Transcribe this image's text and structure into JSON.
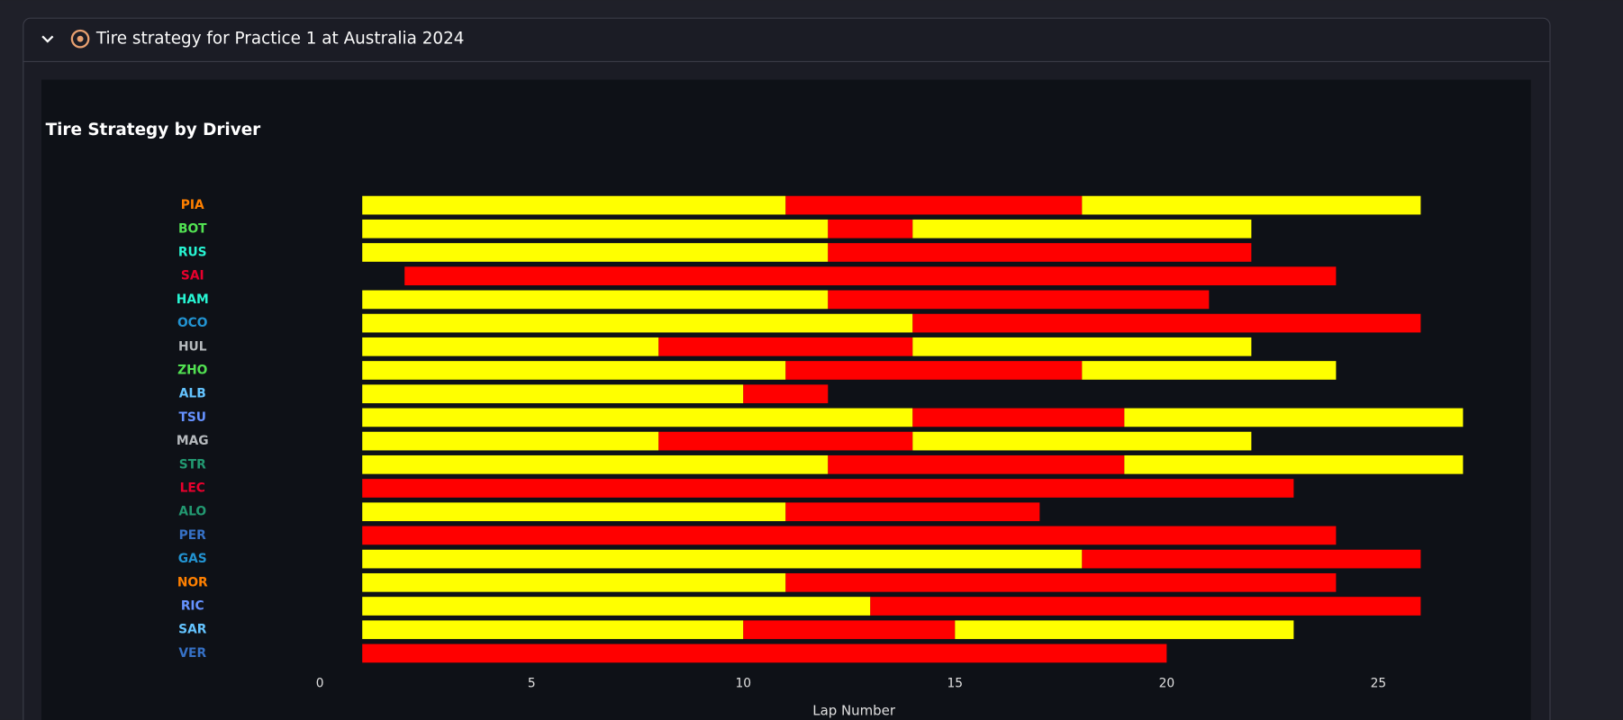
{
  "header": {
    "title": "Tire strategy for Practice 1 at Australia 2024"
  },
  "chart_data": {
    "type": "timeline",
    "title": "Tire Strategy by Driver",
    "xlabel": "Lap Number",
    "xlim": [
      -2.3,
      27.6
    ],
    "xticks": [
      0,
      5,
      10,
      15,
      20,
      25
    ],
    "drivers": [
      {
        "name": "PIA",
        "color": "#ff8000",
        "stints": [
          {
            "start": 1,
            "end": 11,
            "color": "#ffff00"
          },
          {
            "start": 11,
            "end": 18,
            "color": "#ff0000"
          },
          {
            "start": 18,
            "end": 26,
            "color": "#ffff00"
          }
        ]
      },
      {
        "name": "BOT",
        "color": "#52e252",
        "stints": [
          {
            "start": 1,
            "end": 12,
            "color": "#ffff00"
          },
          {
            "start": 12,
            "end": 14,
            "color": "#ff0000"
          },
          {
            "start": 14,
            "end": 22,
            "color": "#ffff00"
          }
        ]
      },
      {
        "name": "RUS",
        "color": "#27f4d2",
        "stints": [
          {
            "start": 1,
            "end": 12,
            "color": "#ffff00"
          },
          {
            "start": 12,
            "end": 22,
            "color": "#ff0000"
          }
        ]
      },
      {
        "name": "SAI",
        "color": "#e8002d",
        "stints": [
          {
            "start": 2,
            "end": 24,
            "color": "#ff0000"
          }
        ]
      },
      {
        "name": "HAM",
        "color": "#27f4d2",
        "stints": [
          {
            "start": 1,
            "end": 12,
            "color": "#ffff00"
          },
          {
            "start": 12,
            "end": 21,
            "color": "#ff0000"
          }
        ]
      },
      {
        "name": "OCO",
        "color": "#2293d1",
        "stints": [
          {
            "start": 1,
            "end": 14,
            "color": "#ffff00"
          },
          {
            "start": 14,
            "end": 26,
            "color": "#ff0000"
          }
        ]
      },
      {
        "name": "HUL",
        "color": "#b6babd",
        "stints": [
          {
            "start": 1,
            "end": 8,
            "color": "#ffff00"
          },
          {
            "start": 8,
            "end": 14,
            "color": "#ff0000"
          },
          {
            "start": 14,
            "end": 22,
            "color": "#ffff00"
          }
        ]
      },
      {
        "name": "ZHO",
        "color": "#52e252",
        "stints": [
          {
            "start": 1,
            "end": 11,
            "color": "#ffff00"
          },
          {
            "start": 11,
            "end": 18,
            "color": "#ff0000"
          },
          {
            "start": 18,
            "end": 24,
            "color": "#ffff00"
          }
        ]
      },
      {
        "name": "ALB",
        "color": "#64c4ff",
        "stints": [
          {
            "start": 1,
            "end": 10,
            "color": "#ffff00"
          },
          {
            "start": 10,
            "end": 12,
            "color": "#ff0000"
          }
        ]
      },
      {
        "name": "TSU",
        "color": "#6692ff",
        "stints": [
          {
            "start": 1,
            "end": 14,
            "color": "#ffff00"
          },
          {
            "start": 14,
            "end": 19,
            "color": "#ff0000"
          },
          {
            "start": 19,
            "end": 27,
            "color": "#ffff00"
          }
        ]
      },
      {
        "name": "MAG",
        "color": "#b6babd",
        "stints": [
          {
            "start": 1,
            "end": 8,
            "color": "#ffff00"
          },
          {
            "start": 8,
            "end": 14,
            "color": "#ff0000"
          },
          {
            "start": 14,
            "end": 22,
            "color": "#ffff00"
          }
        ]
      },
      {
        "name": "STR",
        "color": "#229971",
        "stints": [
          {
            "start": 1,
            "end": 12,
            "color": "#ffff00"
          },
          {
            "start": 12,
            "end": 19,
            "color": "#ff0000"
          },
          {
            "start": 19,
            "end": 27,
            "color": "#ffff00"
          }
        ]
      },
      {
        "name": "LEC",
        "color": "#e8002d",
        "stints": [
          {
            "start": 1,
            "end": 23,
            "color": "#ff0000"
          }
        ]
      },
      {
        "name": "ALO",
        "color": "#229971",
        "stints": [
          {
            "start": 1,
            "end": 11,
            "color": "#ffff00"
          },
          {
            "start": 11,
            "end": 17,
            "color": "#ff0000"
          }
        ]
      },
      {
        "name": "PER",
        "color": "#3671c6",
        "stints": [
          {
            "start": 1,
            "end": 24,
            "color": "#ff0000"
          }
        ]
      },
      {
        "name": "GAS",
        "color": "#2293d1",
        "stints": [
          {
            "start": 1,
            "end": 18,
            "color": "#ffff00"
          },
          {
            "start": 18,
            "end": 26,
            "color": "#ff0000"
          }
        ]
      },
      {
        "name": "NOR",
        "color": "#ff8000",
        "stints": [
          {
            "start": 1,
            "end": 11,
            "color": "#ffff00"
          },
          {
            "start": 11,
            "end": 24,
            "color": "#ff0000"
          }
        ]
      },
      {
        "name": "RIC",
        "color": "#6692ff",
        "stints": [
          {
            "start": 1,
            "end": 13,
            "color": "#ffff00"
          },
          {
            "start": 13,
            "end": 26,
            "color": "#ff0000"
          }
        ]
      },
      {
        "name": "SAR",
        "color": "#64c4ff",
        "stints": [
          {
            "start": 1,
            "end": 10,
            "color": "#ffff00"
          },
          {
            "start": 10,
            "end": 15,
            "color": "#ff0000"
          },
          {
            "start": 15,
            "end": 23,
            "color": "#ffff00"
          }
        ]
      },
      {
        "name": "VER",
        "color": "#3671c6",
        "stints": [
          {
            "start": 1,
            "end": 20,
            "color": "#ff0000"
          }
        ]
      }
    ]
  }
}
